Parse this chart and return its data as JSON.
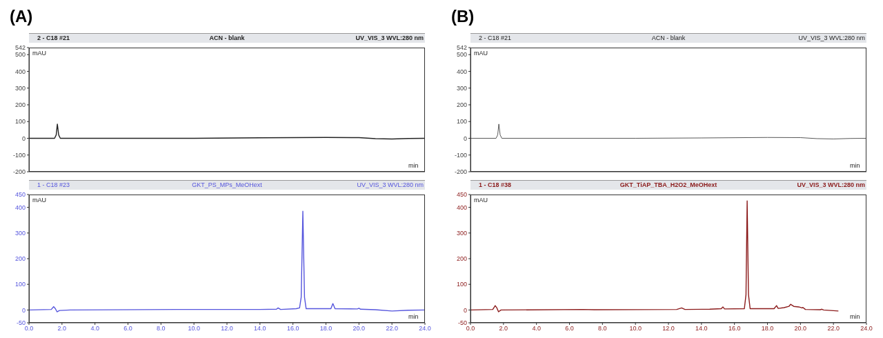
{
  "chart_data": [
    {
      "type": "line",
      "title": "ACN - blank",
      "annotations": [
        "2 - C18 #21",
        "UV_VIS_3 WVL:280 nm",
        "(A)"
      ],
      "ylabel": "mAU",
      "xlabel": "min",
      "marker": "none",
      "tick_labels": "y",
      "xlim": [
        0,
        24
      ],
      "ylim": [
        -200,
        542
      ],
      "yticks": [
        -200,
        -100,
        0,
        100,
        200,
        300,
        400,
        500,
        542
      ],
      "series": [
        {
          "color": "#222222",
          "x": [
            0,
            1.55,
            1.65,
            1.72,
            1.8,
            1.9,
            10,
            14,
            18,
            20,
            21,
            22,
            23,
            24
          ],
          "values": [
            0,
            0,
            20,
            85,
            20,
            0,
            0,
            3,
            5,
            4,
            -2,
            -4,
            -1,
            0
          ]
        }
      ]
    },
    {
      "type": "line",
      "title": "GKT_PS_MPs_MeOHext",
      "annotations": [
        "1 - C18 #23",
        "UV_VIS_3 WVL:280 nm"
      ],
      "ylabel": "mAU",
      "xlabel": "min",
      "marker": "none",
      "xlim": [
        0,
        24
      ],
      "xticks": [
        {
          "value": 0,
          "label": "0.0"
        },
        {
          "value": 2,
          "label": "2.0"
        },
        {
          "value": 4,
          "label": "4.0"
        },
        {
          "value": 6,
          "label": "6.0"
        },
        {
          "value": 8,
          "label": "8.0"
        },
        {
          "value": 10,
          "label": "10.0"
        },
        {
          "value": 12,
          "label": "12.0"
        },
        {
          "value": 14,
          "label": "14.0"
        },
        {
          "value": 16,
          "label": "16.0"
        },
        {
          "value": 18,
          "label": "18.0"
        },
        {
          "value": 20,
          "label": "20.0"
        },
        {
          "value": 22,
          "label": "22.0"
        },
        {
          "value": 24,
          "label": "24.0"
        }
      ],
      "ylim": [
        -50,
        450
      ],
      "yticks": [
        -50,
        0,
        100,
        200,
        300,
        400,
        450
      ],
      "series": [
        {
          "color": "#5555dd",
          "x": [
            0,
            1.35,
            1.5,
            1.6,
            1.7,
            1.85,
            2.5,
            9,
            12,
            14,
            15,
            15.1,
            15.25,
            16.2,
            16.4,
            16.5,
            16.6,
            16.7,
            16.8,
            18.3,
            18.42,
            18.55,
            19.9,
            20,
            20.1,
            21,
            22,
            23,
            24
          ],
          "values": [
            0,
            2,
            13,
            5,
            -7,
            -2,
            0,
            2,
            2,
            2,
            3,
            8,
            2,
            5,
            8,
            50,
            385,
            50,
            5,
            5,
            25,
            5,
            4,
            7,
            3,
            1,
            -4,
            -1,
            0
          ]
        }
      ]
    },
    {
      "type": "line",
      "title": "ACN - blank",
      "annotations": [
        "2 - C18 #21",
        "UV_VIS_3 WVL:280 nm",
        "(B)"
      ],
      "ylabel": "mAU",
      "xlabel": "min",
      "marker": "none",
      "tick_labels": "y",
      "xlim": [
        0,
        24
      ],
      "ylim": [
        -200,
        542
      ],
      "yticks": [
        -200,
        -100,
        0,
        100,
        200,
        300,
        400,
        500,
        542
      ],
      "series": [
        {
          "color": "#444444",
          "x": [
            0,
            1.55,
            1.65,
            1.72,
            1.8,
            1.9,
            10,
            14,
            18,
            20,
            21,
            22,
            23,
            24
          ],
          "values": [
            0,
            0,
            20,
            85,
            20,
            0,
            0,
            2,
            5,
            4,
            -2,
            -4,
            -1,
            0
          ]
        }
      ]
    },
    {
      "type": "line",
      "title": "GKT_TiAP_TBA_H2O2_MeOHext",
      "annotations": [
        "1 - C18 #38",
        "UV_VIS_3 WVL:280 nm"
      ],
      "ylabel": "mAU",
      "xlabel": "min",
      "marker": "none",
      "xlim": [
        0,
        24
      ],
      "xticks": [
        {
          "value": 0,
          "label": "0.0"
        },
        {
          "value": 2,
          "label": "2.0"
        },
        {
          "value": 4,
          "label": "4.0"
        },
        {
          "value": 6,
          "label": "6.0"
        },
        {
          "value": 8,
          "label": "8.0"
        },
        {
          "value": 10,
          "label": "10.0"
        },
        {
          "value": 12,
          "label": "12.0"
        },
        {
          "value": 14,
          "label": "14.0"
        },
        {
          "value": 16,
          "label": "16.0"
        },
        {
          "value": 18,
          "label": "18.0"
        },
        {
          "value": 20,
          "label": "20.0"
        },
        {
          "value": 22,
          "label": "22.0"
        },
        {
          "value": 24,
          "label": "24.0"
        }
      ],
      "ylim": [
        -50,
        450
      ],
      "yticks": [
        -50,
        0,
        100,
        200,
        300,
        400,
        450
      ],
      "series": [
        {
          "color": "#8b1a1a",
          "x": [
            0,
            1.35,
            1.5,
            1.6,
            1.7,
            1.85,
            6.8,
            7.5,
            12.5,
            12.8,
            13,
            14.5,
            15.2,
            15.3,
            15.4,
            16.6,
            16.7,
            16.77,
            16.85,
            16.95,
            18.4,
            18.55,
            18.65,
            19,
            19.3,
            19.4,
            19.6,
            19.9,
            20.1,
            20.15,
            20.3,
            21.2,
            21.3,
            21.4,
            22.3
          ],
          "values": [
            0,
            2,
            17,
            8,
            -7,
            0,
            2,
            1,
            2,
            8,
            2,
            3,
            5,
            12,
            4,
            5,
            60,
            425,
            60,
            5,
            5,
            17,
            6,
            9,
            14,
            22,
            14,
            12,
            8,
            10,
            2,
            1,
            3,
            0,
            -4
          ]
        }
      ]
    }
  ]
}
